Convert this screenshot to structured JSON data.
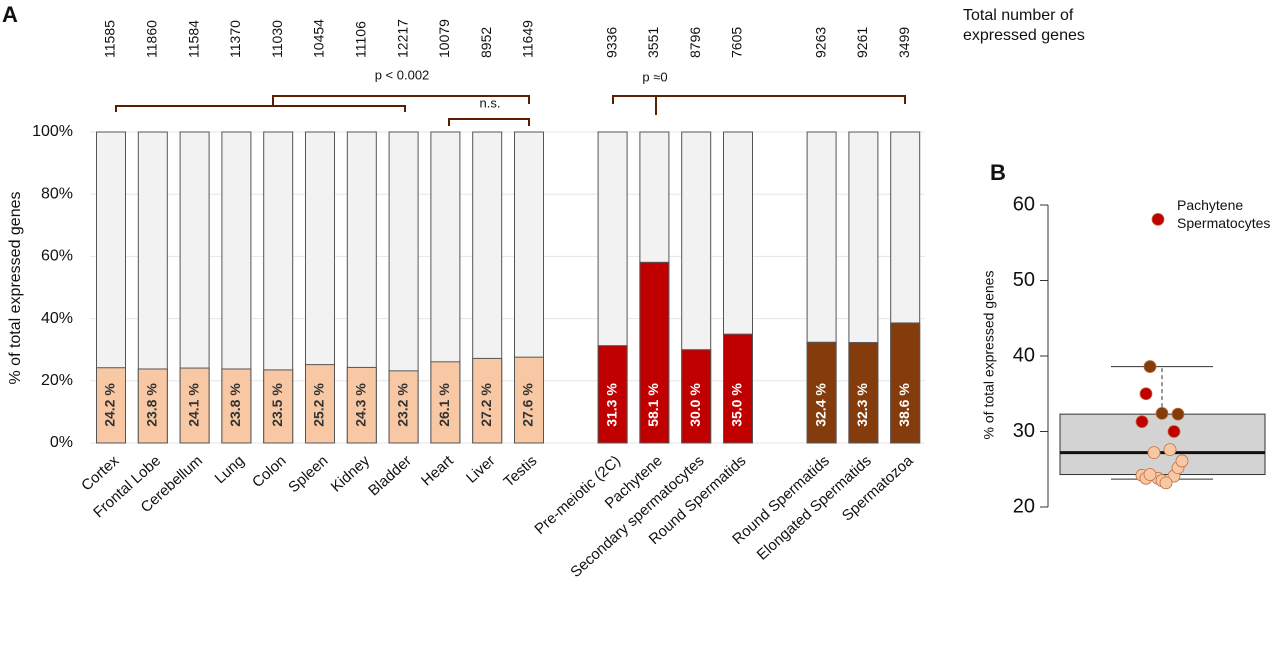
{
  "chart_data": [
    {
      "type": "bar",
      "panel": "A",
      "y_label": "% of total expressed genes",
      "categories": [
        "Cortex",
        "Frontal Lobe",
        "Cerebellum",
        "Lung",
        "Colon",
        "Spleen",
        "Kidney",
        "Bladder",
        "Heart",
        "Liver",
        "Testis",
        "Pre-meiotic (2C)",
        "Pachytene",
        "Secondary spermatocytes",
        "Round Spermatids",
        "Round Spermatids",
        "Elongated Spermatids",
        "Spermatozoa"
      ],
      "values": [
        24.2,
        23.8,
        24.1,
        23.8,
        23.5,
        25.2,
        24.3,
        23.2,
        26.1,
        27.2,
        27.6,
        31.3,
        58.1,
        30.0,
        35.0,
        32.4,
        32.3,
        38.6
      ],
      "value_labels": [
        "24.2 %",
        "23.8 %",
        "24.1 %",
        "23.8 %",
        "23.5 %",
        "25.2 %",
        "24.3 %",
        "23.2 %",
        "26.1 %",
        "27.2 %",
        "27.6 %",
        "31.3 %",
        "58.1 %",
        "30.0 %",
        "35.0 %",
        "32.4 %",
        "32.3 %",
        "38.6 %"
      ],
      "colors": [
        "#f8c8a4",
        "#f8c8a4",
        "#f8c8a4",
        "#f8c8a4",
        "#f8c8a4",
        "#f8c8a4",
        "#f8c8a4",
        "#f8c8a4",
        "#f8c8a4",
        "#f8c8a4",
        "#f8c8a4",
        "#c00000",
        "#c00000",
        "#c00000",
        "#c00000",
        "#843c0c",
        "#843c0c",
        "#843c0c"
      ],
      "totals": [
        11585,
        11860,
        11584,
        11370,
        11030,
        10454,
        11106,
        12217,
        10079,
        8952,
        11649,
        9336,
        3551,
        8796,
        7605,
        9263,
        9261,
        3499
      ],
      "totals_label": "Total number of expressed genes",
      "annotations": [
        "p < 0.002",
        "n.s.",
        "p ≈0"
      ],
      "ylim": [
        0,
        100
      ],
      "yticks": [
        {
          "value": 0,
          "label": "0%"
        },
        {
          "value": 20,
          "label": "20%"
        },
        {
          "value": 40,
          "label": "40%"
        },
        {
          "value": 60,
          "label": "60%"
        },
        {
          "value": 80,
          "label": "80%"
        },
        {
          "value": 100,
          "label": "100%"
        }
      ],
      "grid": true
    },
    {
      "type": "box",
      "panel": "B",
      "y_label": "% of total expressed genes",
      "box": {
        "whislo": 23.7,
        "q1": 24.3,
        "med": 27.2,
        "q3": 32.3,
        "whishi": 38.6
      },
      "annotation": "Pachytene Spermatocytes",
      "ylim": [
        20,
        60
      ],
      "yticks": [
        20,
        30,
        40,
        50,
        60
      ]
    }
  ]
}
